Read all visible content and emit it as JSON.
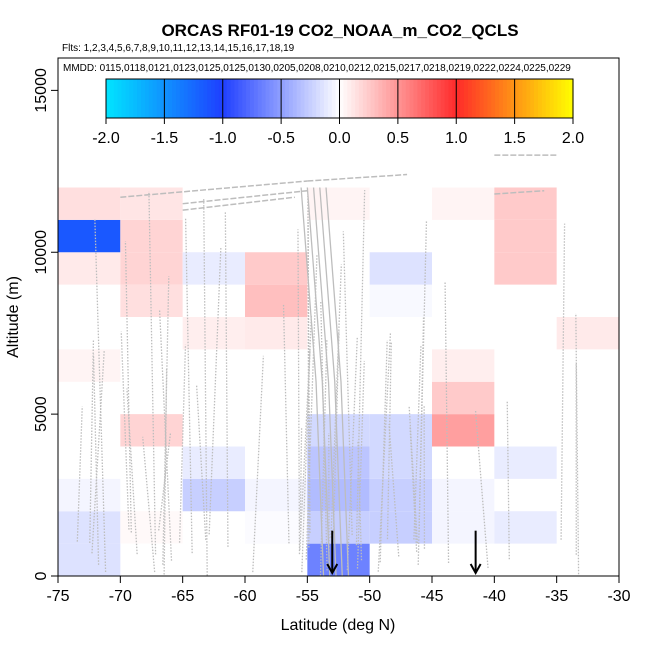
{
  "chart_data": {
    "type": "heatmap",
    "title": "ORCAS RF01-19 CO2_NOAA_m_CO2_QCLS",
    "flights_label": "Flts: 1,2,3,4,5,6,7,8,9,10,11,12,13,14,15,16,17,18,19",
    "dates_label": "MMDD: 0115,0118,0121,0123,0125,0125,0130,0205,0208,0210,0212,0215,0217,0218,0219,0222,0224,0225,0229",
    "xlabel": "Latitude (deg N)",
    "ylabel": "Altitude (m)",
    "xlim": [
      -75,
      -30
    ],
    "ylim": [
      0,
      16000
    ],
    "x_ticks": [
      "-75",
      "-70",
      "-65",
      "-60",
      "-55",
      "-50",
      "-45",
      "-40",
      "-35",
      "-30"
    ],
    "y_ticks": [
      "0",
      "5000",
      "10000",
      "15000"
    ],
    "colorbar": {
      "range": [
        -2.0,
        2.0
      ],
      "ticks": [
        "-2.0",
        "-1.5",
        "-1.0",
        "-0.5",
        "0.0",
        "0.5",
        "1.0",
        "1.5",
        "2.0"
      ]
    },
    "bin_width_deg": 5,
    "bin_height_m": 1000,
    "cells": [
      {
        "lat": -75,
        "alt": 0,
        "value": -0.15
      },
      {
        "lat": -75,
        "alt": 1000,
        "value": -0.15
      },
      {
        "lat": -75,
        "alt": 2000,
        "value": -0.05
      },
      {
        "lat": -75,
        "alt": 6000,
        "value": 0.05
      },
      {
        "lat": -75,
        "alt": 9000,
        "value": 0.1
      },
      {
        "lat": -75,
        "alt": 10000,
        "value": -1.15
      },
      {
        "lat": -75,
        "alt": 11000,
        "value": 0.15
      },
      {
        "lat": -70,
        "alt": 1000,
        "value": 0.03
      },
      {
        "lat": -70,
        "alt": 4000,
        "value": 0.2
      },
      {
        "lat": -70,
        "alt": 8000,
        "value": 0.15
      },
      {
        "lat": -70,
        "alt": 9000,
        "value": 0.2
      },
      {
        "lat": -70,
        "alt": 10000,
        "value": 0.2
      },
      {
        "lat": -70,
        "alt": 11000,
        "value": 0.12
      },
      {
        "lat": -65,
        "alt": 2000,
        "value": -0.25
      },
      {
        "lat": -65,
        "alt": 3000,
        "value": -0.1
      },
      {
        "lat": -65,
        "alt": 7000,
        "value": 0.08
      },
      {
        "lat": -65,
        "alt": 9000,
        "value": -0.1
      },
      {
        "lat": -60,
        "alt": 1000,
        "value": -0.02
      },
      {
        "lat": -60,
        "alt": 2000,
        "value": -0.05
      },
      {
        "lat": -60,
        "alt": 7000,
        "value": 0.1
      },
      {
        "lat": -60,
        "alt": 8000,
        "value": 0.3
      },
      {
        "lat": -60,
        "alt": 9000,
        "value": 0.25
      },
      {
        "lat": -55,
        "alt": 0,
        "value": -0.65
      },
      {
        "lat": -55,
        "alt": 1000,
        "value": -0.25
      },
      {
        "lat": -55,
        "alt": 2000,
        "value": -0.35
      },
      {
        "lat": -55,
        "alt": 3000,
        "value": -0.3
      },
      {
        "lat": -55,
        "alt": 4000,
        "value": -0.2
      },
      {
        "lat": -55,
        "alt": 11000,
        "value": 0.05
      },
      {
        "lat": -50,
        "alt": 1000,
        "value": -0.25
      },
      {
        "lat": -50,
        "alt": 2000,
        "value": -0.25
      },
      {
        "lat": -50,
        "alt": 3000,
        "value": -0.2
      },
      {
        "lat": -50,
        "alt": 4000,
        "value": -0.2
      },
      {
        "lat": -50,
        "alt": 8000,
        "value": -0.03
      },
      {
        "lat": -50,
        "alt": 9000,
        "value": -0.15
      },
      {
        "lat": -45,
        "alt": 1000,
        "value": -0.05
      },
      {
        "lat": -45,
        "alt": 2000,
        "value": -0.05
      },
      {
        "lat": -45,
        "alt": 4000,
        "value": 0.45
      },
      {
        "lat": -45,
        "alt": 5000,
        "value": 0.25
      },
      {
        "lat": -45,
        "alt": 6000,
        "value": 0.08
      },
      {
        "lat": -45,
        "alt": 11000,
        "value": 0.05
      },
      {
        "lat": -40,
        "alt": 1000,
        "value": -0.1
      },
      {
        "lat": -40,
        "alt": 3000,
        "value": -0.1
      },
      {
        "lat": -40,
        "alt": 9000,
        "value": 0.25
      },
      {
        "lat": -40,
        "alt": 10000,
        "value": 0.25
      },
      {
        "lat": -40,
        "alt": 11000,
        "value": 0.25
      },
      {
        "lat": -35,
        "alt": 7000,
        "value": 0.1
      }
    ],
    "markers": [
      {
        "lat": -53,
        "label": "arrow"
      },
      {
        "lat": -41.5,
        "label": "arrow"
      }
    ],
    "flight_track_color": "#bdbdbd",
    "colors": {
      "low": "#00e5ff",
      "mid_low": "#1f3fff",
      "zero": "#ffffff",
      "mid_high": "#ff2a2a",
      "high": "#ffff00"
    },
    "grid": false,
    "legend": "none"
  }
}
